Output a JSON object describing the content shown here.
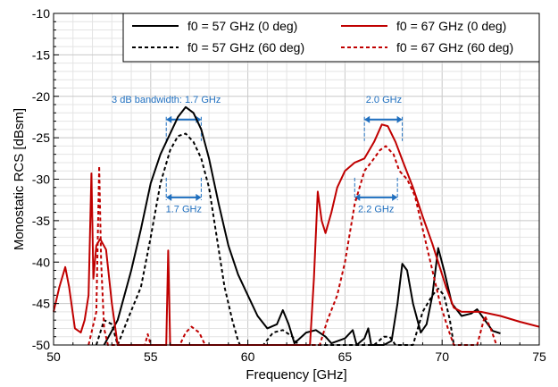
{
  "chart_data": {
    "type": "line",
    "title": "",
    "xlabel": "Frequency [GHz]",
    "ylabel": "Monostatic RCS [dBsm]",
    "xlim": [
      50,
      75
    ],
    "ylim": [
      -50,
      -10
    ],
    "xticks": [
      50,
      55,
      60,
      65,
      70,
      75
    ],
    "yticks": [
      -50,
      -45,
      -40,
      -35,
      -30,
      -25,
      -20,
      -15,
      -10
    ],
    "xtick_labels": [
      "50",
      "55",
      "60",
      "65",
      "70",
      "75"
    ],
    "ytick_labels": [
      "-50",
      "-45",
      "-40",
      "-35",
      "-30",
      "-25",
      "-20",
      "-15",
      "-10"
    ],
    "grid": true,
    "legend_position": "top-right",
    "colors": {
      "black": "#000000",
      "red": "#c00000",
      "annotation": "#1f6fbf",
      "grid": "#d0d0d0"
    },
    "series": [
      {
        "name": "f0 = 57 GHz (0 deg)",
        "color": "#000000",
        "dash": "solid",
        "points": [
          [
            52.6,
            -50
          ],
          [
            53.3,
            -47
          ],
          [
            54.0,
            -41
          ],
          [
            54.5,
            -36
          ],
          [
            55.0,
            -30.5
          ],
          [
            55.5,
            -27
          ],
          [
            56.0,
            -24.5
          ],
          [
            56.4,
            -22.5
          ],
          [
            56.8,
            -21.3
          ],
          [
            57.2,
            -22
          ],
          [
            57.6,
            -24
          ],
          [
            58.0,
            -27.5
          ],
          [
            58.5,
            -33
          ],
          [
            59.0,
            -38
          ],
          [
            59.5,
            -41.5
          ],
          [
            60.0,
            -44
          ],
          [
            60.5,
            -46.5
          ],
          [
            61.0,
            -48
          ],
          [
            61.5,
            -47.5
          ],
          [
            61.8,
            -45.8
          ],
          [
            62.1,
            -47.5
          ],
          [
            62.4,
            -49.8
          ],
          [
            63.0,
            -48.5
          ],
          [
            63.5,
            -48.2
          ],
          [
            64.0,
            -49
          ],
          [
            64.3,
            -49.8
          ],
          [
            65.0,
            -49.2
          ],
          [
            65.4,
            -48.2
          ],
          [
            65.6,
            -50
          ],
          [
            66.0,
            -49.2
          ],
          [
            66.2,
            -48
          ],
          [
            66.35,
            -50
          ],
          [
            67.0,
            -50
          ],
          [
            67.4,
            -49.5
          ],
          [
            67.7,
            -45
          ],
          [
            67.95,
            -40.2
          ],
          [
            68.2,
            -41
          ],
          [
            68.5,
            -45
          ],
          [
            68.9,
            -48.5
          ],
          [
            69.2,
            -47.5
          ],
          [
            69.5,
            -44
          ],
          [
            69.8,
            -38.3
          ],
          [
            70.1,
            -41
          ],
          [
            70.5,
            -45
          ],
          [
            71.0,
            -46.5
          ],
          [
            71.5,
            -46.2
          ],
          [
            71.8,
            -45.7
          ],
          [
            72.2,
            -47
          ],
          [
            72.6,
            -48.3
          ],
          [
            73.0,
            -48.6
          ]
        ]
      },
      {
        "name": "f0 = 57 GHz (60 deg)",
        "color": "#000000",
        "dash": "dashed",
        "points": [
          [
            52.2,
            -50
          ],
          [
            52.6,
            -47
          ],
          [
            53.0,
            -47.5
          ],
          [
            53.3,
            -50
          ],
          [
            53.8,
            -47
          ],
          [
            54.5,
            -43
          ],
          [
            55.0,
            -37
          ],
          [
            55.5,
            -30.5
          ],
          [
            56.0,
            -26.5
          ],
          [
            56.4,
            -24.8
          ],
          [
            56.8,
            -24.5
          ],
          [
            57.2,
            -25.5
          ],
          [
            57.6,
            -27.5
          ],
          [
            58.0,
            -31
          ],
          [
            58.4,
            -37
          ],
          [
            58.8,
            -43
          ],
          [
            59.2,
            -47
          ],
          [
            59.5,
            -49.5
          ],
          [
            59.6,
            -50
          ],
          [
            60.8,
            -50
          ],
          [
            61.3,
            -48.5
          ],
          [
            61.8,
            -48.2
          ],
          [
            62.3,
            -49
          ],
          [
            62.6,
            -50
          ],
          [
            66.5,
            -50
          ],
          [
            67.0,
            -49
          ],
          [
            67.3,
            -49
          ],
          [
            67.6,
            -50
          ],
          [
            68.5,
            -50
          ],
          [
            69.0,
            -46
          ],
          [
            69.5,
            -44
          ],
          [
            69.8,
            -43.2
          ],
          [
            70.1,
            -44
          ],
          [
            70.4,
            -47
          ],
          [
            70.6,
            -50
          ]
        ]
      },
      {
        "name": "f0 = 67 GHz (0 deg)",
        "color": "#c00000",
        "dash": "solid",
        "points": [
          [
            50.0,
            -46
          ],
          [
            50.3,
            -43
          ],
          [
            50.6,
            -40.6
          ],
          [
            50.8,
            -43
          ],
          [
            51.1,
            -48
          ],
          [
            51.4,
            -48.5
          ],
          [
            51.6,
            -47
          ],
          [
            51.8,
            -44
          ],
          [
            51.95,
            -29.3
          ],
          [
            52.05,
            -42
          ],
          [
            52.2,
            -38
          ],
          [
            52.4,
            -37.2
          ],
          [
            52.7,
            -38.5
          ],
          [
            53.0,
            -45
          ],
          [
            53.3,
            -50
          ],
          [
            55.8,
            -50
          ],
          [
            55.9,
            -38.6
          ],
          [
            56.0,
            -50
          ],
          [
            63.2,
            -50
          ],
          [
            63.4,
            -42
          ],
          [
            63.6,
            -31.5
          ],
          [
            63.8,
            -35
          ],
          [
            64.0,
            -36.5
          ],
          [
            64.3,
            -34
          ],
          [
            64.6,
            -31
          ],
          [
            65.0,
            -29
          ],
          [
            65.5,
            -28
          ],
          [
            66.0,
            -27.5
          ],
          [
            66.5,
            -25.5
          ],
          [
            66.9,
            -23.4
          ],
          [
            67.2,
            -23.6
          ],
          [
            67.6,
            -25.5
          ],
          [
            68.0,
            -28
          ],
          [
            68.5,
            -31
          ],
          [
            69.0,
            -34.5
          ],
          [
            69.5,
            -37.8
          ],
          [
            69.8,
            -40
          ],
          [
            70.2,
            -43
          ],
          [
            70.6,
            -45.5
          ],
          [
            71.0,
            -46
          ],
          [
            72.0,
            -46
          ],
          [
            73.0,
            -46.5
          ],
          [
            74.0,
            -47.2
          ],
          [
            75.0,
            -47.8
          ]
        ]
      },
      {
        "name": "f0 = 67 GHz (60 deg)",
        "color": "#c00000",
        "dash": "dashed",
        "points": [
          [
            51.8,
            -50
          ],
          [
            52.2,
            -46
          ],
          [
            52.35,
            -28.4
          ],
          [
            52.45,
            -40
          ],
          [
            52.6,
            -48
          ],
          [
            52.8,
            -50
          ],
          [
            54.7,
            -50
          ],
          [
            54.85,
            -48.7
          ],
          [
            55.0,
            -50
          ],
          [
            56.5,
            -50
          ],
          [
            56.8,
            -48.5
          ],
          [
            57.1,
            -47.8
          ],
          [
            57.5,
            -48.5
          ],
          [
            57.8,
            -50
          ],
          [
            63.7,
            -50
          ],
          [
            64.1,
            -47
          ],
          [
            64.6,
            -44
          ],
          [
            65.0,
            -40
          ],
          [
            65.5,
            -33
          ],
          [
            66.0,
            -29
          ],
          [
            66.4,
            -27.8
          ],
          [
            66.8,
            -26.5
          ],
          [
            67.1,
            -26
          ],
          [
            67.5,
            -27
          ],
          [
            67.8,
            -29
          ],
          [
            68.2,
            -30
          ],
          [
            68.6,
            -32
          ],
          [
            69.0,
            -36
          ],
          [
            69.5,
            -41
          ],
          [
            69.9,
            -45
          ],
          [
            70.3,
            -48
          ],
          [
            70.6,
            -50
          ],
          [
            71.8,
            -50
          ],
          [
            72.2,
            -46.5
          ],
          [
            72.5,
            -48
          ],
          [
            72.8,
            -50
          ]
        ]
      }
    ],
    "annotations": [
      {
        "text": "3 dB bandwidth: 1.7 GHz",
        "x": 55.8,
        "y": -20.8,
        "x1": 55.8,
        "x2": 57.6,
        "bracket_y": -22.8,
        "label_side": "above"
      },
      {
        "text": "1.7 GHz",
        "x": 56.7,
        "y": -34.0,
        "x1": 55.8,
        "x2": 57.6,
        "bracket_y": -32.2,
        "label_side": "below"
      },
      {
        "text": "2.0 GHz",
        "x": 67.0,
        "y": -20.8,
        "x1": 66.0,
        "x2": 67.95,
        "bracket_y": -22.8,
        "label_side": "above"
      },
      {
        "text": "2.2 GHz",
        "x": 66.6,
        "y": -34.0,
        "x1": 65.5,
        "x2": 67.7,
        "bracket_y": -32.2,
        "label_side": "below"
      }
    ]
  }
}
